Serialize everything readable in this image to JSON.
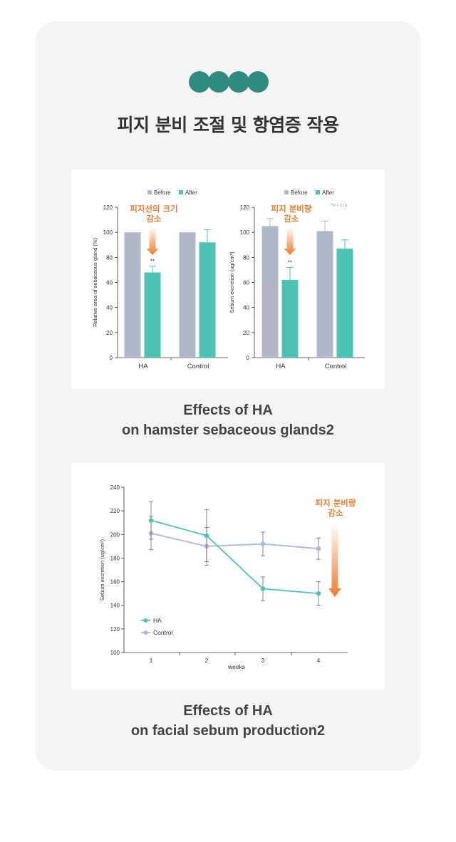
{
  "section": {
    "title": "피지 분비 조절 및 항염증 작용",
    "dot_colors": [
      "#2e8b7e",
      "#2e8b7e",
      "#2e8b7e",
      "#2e8b7e"
    ]
  },
  "colors": {
    "before": "#b0b8c8",
    "after": "#4dc3b4",
    "control_line": "#b0b8d0",
    "accent": "#ee7d2e",
    "axis": "#333333"
  },
  "figure1": {
    "caption_line1": "Effects of HA",
    "caption_line2": "on hamster sebaceous glands2",
    "legend": [
      "Before",
      "After"
    ]
  },
  "figure2": {
    "caption_line1": "Effects of HA",
    "caption_line2": "on facial sebum production2"
  },
  "chart_data": [
    {
      "type": "bar",
      "categories": [
        "HA",
        "Control"
      ],
      "series": [
        {
          "name": "Before",
          "values": [
            100,
            100
          ],
          "errors": [
            0,
            0
          ]
        },
        {
          "name": "After",
          "values": [
            68,
            92
          ],
          "errors": [
            5,
            10
          ]
        }
      ],
      "ylabel": "Relative area of sebaceous gland (%)",
      "ylim": [
        0,
        120
      ],
      "yticks": [
        0,
        20,
        40,
        60,
        80,
        100,
        120
      ],
      "significance": [
        {
          "category": "HA",
          "series": "After",
          "label": "**"
        }
      ],
      "annotation": [
        "피지선의 크기",
        "감소"
      ],
      "legend_position": "top"
    },
    {
      "type": "bar",
      "categories": [
        "HA",
        "Control"
      ],
      "series": [
        {
          "name": "Before",
          "values": [
            105,
            101
          ],
          "errors": [
            6,
            8
          ]
        },
        {
          "name": "After",
          "values": [
            62,
            87
          ],
          "errors": [
            10,
            7
          ]
        }
      ],
      "ylabel": "Sebum excretion (ug/cm²)",
      "ylim": [
        0,
        120
      ],
      "yticks": [
        0,
        20,
        40,
        60,
        80,
        100,
        120
      ],
      "significance": [
        {
          "category": "HA",
          "series": "After",
          "label": "**"
        }
      ],
      "note": "**P < 0.01",
      "annotation": [
        "피지 분비량",
        "감소"
      ],
      "legend_position": "top"
    },
    {
      "type": "line",
      "x": [
        1,
        2,
        3,
        4
      ],
      "series": [
        {
          "name": "HA",
          "values": [
            212,
            199,
            154,
            150
          ],
          "errors": [
            16,
            22,
            10,
            10
          ]
        },
        {
          "name": "Control",
          "values": [
            201,
            190,
            192,
            188
          ],
          "errors": [
            14,
            16,
            10,
            9
          ]
        }
      ],
      "xlabel": "weeks",
      "ylabel": "Sebum excretion (ug/cm²)",
      "ylim": [
        100,
        240
      ],
      "yticks": [
        100,
        120,
        140,
        160,
        180,
        200,
        220,
        240
      ],
      "annotation": [
        "피지 분비량",
        "감소"
      ],
      "legend_position": "bottom-left"
    }
  ]
}
